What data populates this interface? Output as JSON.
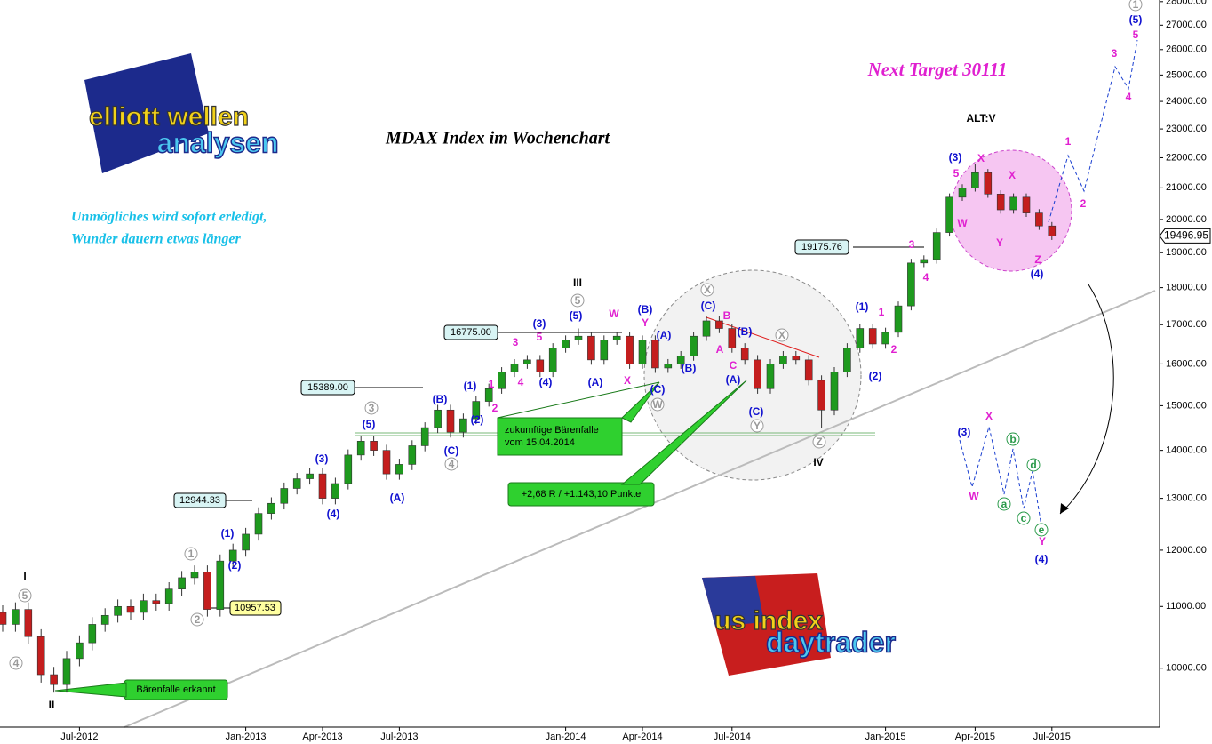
{
  "chart_data": {
    "type": "candlestick",
    "title": "MDAX Index im Wochenchart",
    "target_note": "Next Target 30111",
    "motto": [
      "Unmögliches wird sofort erledigt,",
      "Wunder dauern etwas länger"
    ],
    "logos": {
      "left": [
        "elliott wellen",
        "analysen"
      ],
      "right": [
        "us index",
        "daytrader"
      ]
    },
    "callouts": [
      [
        "zukumftige Bärenfalle",
        "vom 15.04.2014"
      ],
      [
        "+2,68 R / +1.143,10 Punkte"
      ],
      [
        "Bärenfalle erkannt"
      ]
    ],
    "price_labels": [
      "19175.76",
      "16775.00",
      "15389.00",
      "12944.33",
      "10957.53"
    ],
    "last_price_label": "19496.95",
    "up_color": "#1e9a1e",
    "down_color": "#c41e1e",
    "log_scale": true,
    "grid": false,
    "categories": [
      null,
      null,
      null,
      null,
      null,
      null,
      "Jul-2012",
      null,
      null,
      null,
      null,
      null,
      null,
      null,
      null,
      null,
      null,
      null,
      null,
      "Jan-2013",
      null,
      null,
      null,
      null,
      null,
      "Apr-2013",
      null,
      null,
      null,
      null,
      null,
      "Jul-2013",
      null,
      null,
      null,
      null,
      null,
      null,
      null,
      null,
      null,
      null,
      null,
      null,
      "Jan-2014",
      null,
      null,
      null,
      null,
      null,
      "Apr-2014",
      null,
      null,
      null,
      null,
      null,
      null,
      "Jul-2014",
      null,
      null,
      null,
      null,
      null,
      null,
      null,
      null,
      null,
      null,
      null,
      "Jan-2015",
      null,
      null,
      null,
      null,
      null,
      null,
      "Apr-2015",
      null,
      null,
      null,
      null,
      null,
      "Jul-2015"
    ],
    "open": [
      10900,
      10700,
      10950,
      10500,
      9900,
      9750,
      10150,
      10400,
      10700,
      10850,
      11000,
      10900,
      11100,
      11050,
      11300,
      11500,
      11600,
      10950,
      11800,
      12000,
      12300,
      12700,
      12900,
      13200,
      13400,
      13500,
      13000,
      13300,
      13900,
      14200,
      14000,
      13500,
      13700,
      14100,
      14500,
      14900,
      14400,
      14700,
      15100,
      15400,
      15800,
      16000,
      16100,
      15800,
      16400,
      16600,
      16700,
      16100,
      16600,
      16700,
      16000,
      16600,
      15900,
      16000,
      16200,
      16700,
      17100,
      16900,
      16400,
      16100,
      15400,
      16000,
      16200,
      16100,
      15600,
      14900,
      15800,
      16400,
      16900,
      16500,
      16800,
      17500,
      18700,
      18800,
      19600,
      20700,
      21000,
      21500,
      20800,
      20300,
      20700,
      20200,
      19800
    ],
    "high": [
      11020,
      11070,
      11070,
      10620,
      10020,
      10270,
      10520,
      10820,
      10970,
      11120,
      11120,
      11220,
      11220,
      11420,
      11620,
      11720,
      11720,
      11920,
      12120,
      12420,
      12820,
      13020,
      13320,
      13520,
      13620,
      13620,
      13420,
      14020,
      14320,
      14320,
      14120,
      13820,
      14220,
      14620,
      15020,
      15020,
      14820,
      15220,
      15520,
      15920,
      16120,
      16220,
      16220,
      16520,
      16720,
      16900,
      16820,
      16720,
      16820,
      16820,
      16720,
      16720,
      16120,
      16320,
      16820,
      17220,
      17220,
      17020,
      16520,
      16220,
      16120,
      16320,
      16320,
      16220,
      15720,
      15920,
      16520,
      17020,
      17020,
      16920,
      17620,
      18820,
      18920,
      19720,
      20820,
      21120,
      21800,
      21620,
      20920,
      20820,
      20820,
      20320,
      19920
    ],
    "low": [
      10580,
      10580,
      10380,
      9780,
      9630,
      9630,
      10030,
      10280,
      10580,
      10730,
      10780,
      10780,
      10930,
      10930,
      11180,
      11380,
      10830,
      10830,
      11680,
      11880,
      12180,
      12580,
      12780,
      13080,
      13280,
      12880,
      12880,
      13180,
      13780,
      13880,
      13380,
      13380,
      13580,
      13980,
      14380,
      14280,
      14280,
      14580,
      14980,
      15280,
      15680,
      15880,
      15680,
      15680,
      16280,
      16480,
      15980,
      15980,
      16480,
      15880,
      15880,
      15780,
      15780,
      15880,
      16080,
      16580,
      16780,
      16280,
      15980,
      15280,
      15280,
      15880,
      15980,
      15480,
      14500,
      14780,
      15680,
      16280,
      16380,
      16380,
      16680,
      17380,
      18580,
      18680,
      19480,
      20580,
      20880,
      20680,
      20180,
      20180,
      20080,
      19680,
      19377
    ],
    "close": [
      10700,
      10950,
      10500,
      9900,
      9750,
      10150,
      10400,
      10700,
      10850,
      11000,
      10900,
      11100,
      11050,
      11300,
      11500,
      11600,
      10950,
      11800,
      12000,
      12300,
      12700,
      12900,
      13200,
      13400,
      13500,
      13000,
      13300,
      13900,
      14200,
      14000,
      13500,
      13700,
      14100,
      14500,
      14900,
      14400,
      14700,
      15100,
      15400,
      15800,
      16000,
      16100,
      15800,
      16400,
      16600,
      16700,
      16100,
      16600,
      16700,
      16000,
      16600,
      15900,
      16000,
      16200,
      16700,
      17100,
      16900,
      16400,
      16100,
      15400,
      16000,
      16200,
      16100,
      15600,
      14900,
      15800,
      16400,
      16900,
      16500,
      16800,
      17500,
      18700,
      18800,
      19600,
      20700,
      21000,
      21500,
      20800,
      20300,
      20700,
      20200,
      19800,
      19496.95
    ],
    "ylim": [
      9130,
      28070
    ],
    "yticks": [
      {
        "value": 10000,
        "label": "10000.00"
      },
      {
        "value": 11000,
        "label": "11000.00"
      },
      {
        "value": 12000,
        "label": "12000.00"
      },
      {
        "value": 13000,
        "label": "13000.00"
      },
      {
        "value": 14000,
        "label": "14000.00"
      },
      {
        "value": 15000,
        "label": "15000.00"
      },
      {
        "value": 16000,
        "label": "16000.00"
      },
      {
        "value": 17000,
        "label": "17000.00"
      },
      {
        "value": 18000,
        "label": "18000.00"
      },
      {
        "value": 19000,
        "label": "19000.00"
      },
      {
        "value": 20000,
        "label": "20000.00"
      },
      {
        "value": 21000,
        "label": "21000.00"
      },
      {
        "value": 22000,
        "label": "22000.00"
      },
      {
        "value": 23000,
        "label": "23000.00"
      },
      {
        "value": 24000,
        "label": "24000.00"
      },
      {
        "value": 25000,
        "label": "25000.00"
      },
      {
        "value": 26000,
        "label": "26000.00"
      },
      {
        "value": 27000,
        "label": "27000.00"
      },
      {
        "value": 28000,
        "label": "28000.00"
      }
    ],
    "wave_labels": {
      "black": [
        "I",
        "II",
        "III",
        "IV",
        "ALT:V"
      ],
      "grey": [
        "5",
        "4",
        "1",
        "2",
        "3",
        "4",
        "5",
        "W",
        "X",
        "Y",
        "X",
        "Z",
        "1"
      ],
      "blue": [
        "(1)",
        "(2)",
        "(3)",
        "(4)",
        "(5)",
        "(A)",
        "(B)",
        "(C)",
        "(1)",
        "(2)",
        "(3)",
        "(4)",
        "(5)",
        "(A)",
        "(B)",
        "(A)",
        "(B)",
        "(C)",
        "(C)",
        "(B)",
        "(A)",
        "(C)",
        "(1)",
        "(2)",
        "(3)",
        "(4)",
        "(5)",
        "(3)",
        "(4)"
      ],
      "magenta": [
        "1",
        "2",
        "3",
        "4",
        "5",
        "W",
        "Y",
        "X",
        "B",
        "A",
        "C",
        "1",
        "2",
        "3",
        "4",
        "5",
        "X",
        "W",
        "X",
        "Y",
        "Z",
        "1",
        "2",
        "3",
        "4",
        "5",
        "X",
        "W",
        "Y"
      ],
      "green": [
        "a",
        "b",
        "c",
        "d",
        "e"
      ]
    }
  }
}
